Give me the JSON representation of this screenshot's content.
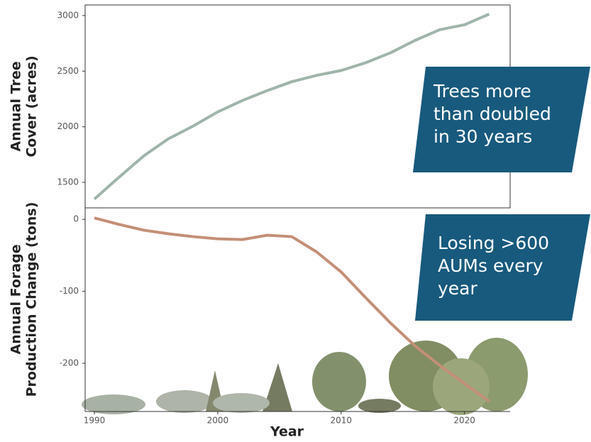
{
  "chart_data": [
    {
      "type": "line",
      "ylabel": [
        "Annual Tree",
        "Cover (acres)"
      ],
      "x": [
        1990,
        1992,
        1994,
        1996,
        1998,
        2000,
        2002,
        2004,
        2006,
        2008,
        2010,
        2012,
        2014,
        2016,
        2018,
        2020,
        2022
      ],
      "series": [
        {
          "name": "Annual Tree Cover",
          "color": "#9fb5aa",
          "values": [
            1350,
            1547,
            1738,
            1892,
            2006,
            2134,
            2236,
            2325,
            2405,
            2462,
            2506,
            2576,
            2665,
            2777,
            2873,
            2917,
            3013
          ]
        }
      ],
      "xlim": [
        1989.25,
        2023.7
      ],
      "ylim": [
        1271,
        3095
      ],
      "yticks": [
        1500,
        2000,
        2500,
        3000
      ],
      "annotation": [
        "Trees more",
        "than doubled",
        "in 30 years"
      ]
    },
    {
      "type": "line",
      "ylabel": [
        "Annual Forage",
        "Production Change (tons)"
      ],
      "xlabel": "Year",
      "x": [
        1990,
        1992,
        1994,
        1996,
        1998,
        2000,
        2002,
        2004,
        2006,
        2008,
        2010,
        2012,
        2014,
        2016,
        2018,
        2020,
        2022
      ],
      "series": [
        {
          "name": "Annual Forage Production Change",
          "color": "#c48f76",
          "values": [
            2,
            -7,
            -15,
            -20,
            -24,
            -27,
            -28,
            -22,
            -24,
            -45,
            -73,
            -109,
            -144,
            -176,
            -203,
            -228,
            -253
          ]
        }
      ],
      "xlim": [
        1989.25,
        2023.7
      ],
      "ylim": [
        -267,
        16
      ],
      "yticks": [
        -200,
        -100,
        0
      ],
      "xticks": [
        1990,
        2000,
        2010,
        2020
      ],
      "annotation": [
        "Losing >600",
        "AUMs every",
        "year"
      ]
    }
  ]
}
